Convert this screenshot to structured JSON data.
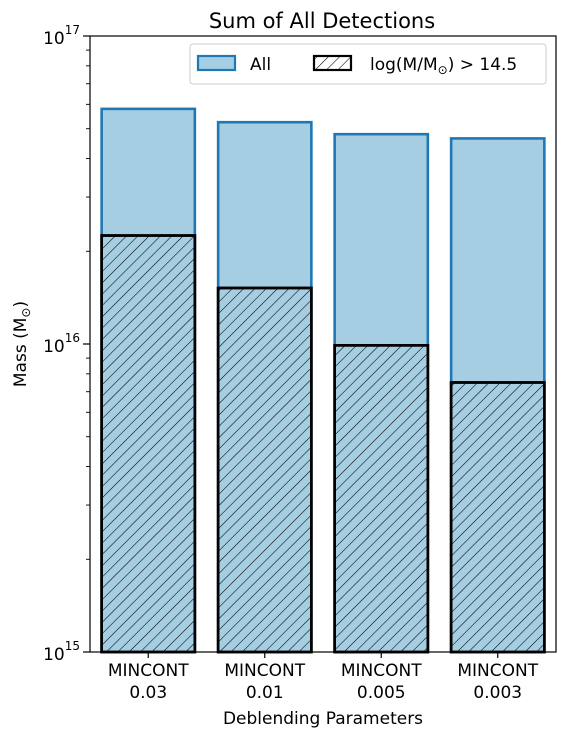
{
  "chart_data": {
    "type": "bar",
    "title": "Sum of All Detections",
    "xlabel": "Deblending Parameters",
    "ylabel": "Mass (M",
    "ylabel_subscript": "⊙",
    "ylabel_suffix": ")",
    "yscale": "log",
    "ylim": [
      1000000000000000.0,
      1e+17
    ],
    "yticks": [
      {
        "base": "10",
        "exp": "15"
      },
      {
        "base": "10",
        "exp": "16"
      },
      {
        "base": "10",
        "exp": "17"
      }
    ],
    "categories": [
      {
        "line1": "MINCONT",
        "line2": "0.03"
      },
      {
        "line1": "MINCONT",
        "line2": "0.01"
      },
      {
        "line1": "MINCONT",
        "line2": "0.005"
      },
      {
        "line1": "MINCONT",
        "line2": "0.003"
      }
    ],
    "series": [
      {
        "name": "All",
        "values": [
          5.8e+16,
          5.25e+16,
          4.8e+16,
          4.65e+16
        ],
        "fill": "#a6cee3",
        "edge": "#1f78b4",
        "hatch": false
      },
      {
        "name": "log(M/M⊙) > 14.5",
        "name_prefix": "log(M/M",
        "name_sub": "⊙",
        "name_suffix": ") > 14.5",
        "values": [
          2.25e+16,
          1.52e+16,
          9900000000000000.0,
          7500000000000000.0
        ],
        "fill": "#a6cee3",
        "edge": "#000000",
        "hatch": true
      }
    ],
    "legend": {
      "placement": "top-right",
      "columns": 2
    },
    "grid": false
  }
}
